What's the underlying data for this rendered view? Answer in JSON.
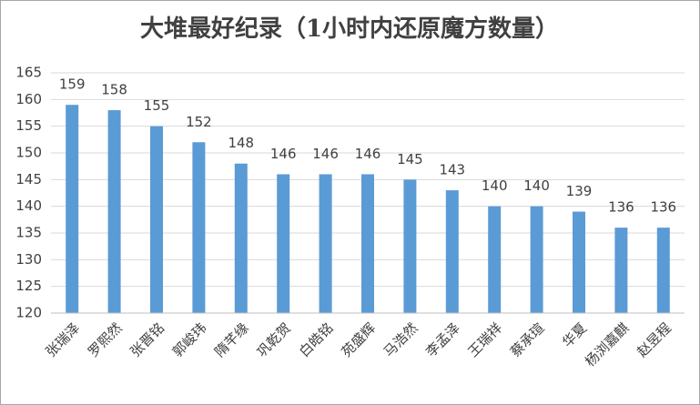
{
  "chart_data": {
    "type": "bar",
    "title": "大堆最好纪录（1小时内还原魔方数量）",
    "categories": [
      "张瑞泽",
      "罗熙然",
      "张晋铭",
      "郭峻玮",
      "隋芊缘",
      "巩乾贺",
      "白皓铭",
      "苑盛辉",
      "马浩然",
      "李孟泽",
      "王瑞祥",
      "蔡承瑄",
      "华夏",
      "杨浏嘉麒",
      "赵昱程"
    ],
    "values": [
      159,
      158,
      155,
      152,
      148,
      146,
      146,
      146,
      145,
      143,
      140,
      140,
      139,
      136,
      136
    ],
    "color": "#5b9bd5",
    "ylim": [
      120,
      165
    ],
    "yticks": [
      120,
      125,
      130,
      135,
      140,
      145,
      150,
      155,
      160,
      165
    ],
    "grid": true
  }
}
